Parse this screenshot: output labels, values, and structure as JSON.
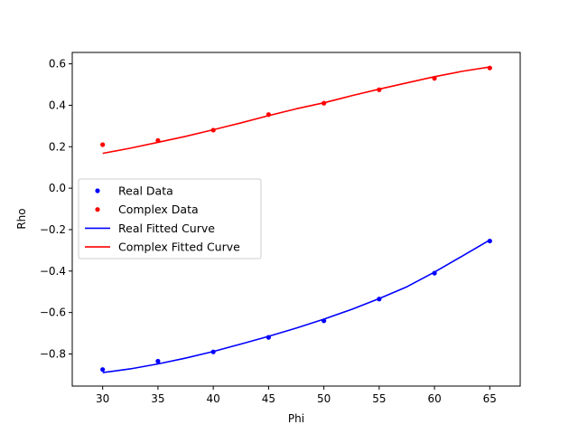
{
  "chart_data": {
    "type": "line",
    "title": "",
    "xlabel": "Phi",
    "ylabel": "Rho",
    "xlim": [
      27.25,
      67.75
    ],
    "ylim": [
      -0.955,
      0.655
    ],
    "xticks": [
      30,
      35,
      40,
      45,
      50,
      55,
      60,
      65
    ],
    "yticks": [
      -0.8,
      -0.6,
      -0.4,
      -0.2,
      0.0,
      0.2,
      0.4,
      0.6
    ],
    "xtick_labels": [
      "30",
      "35",
      "40",
      "45",
      "50",
      "55",
      "60",
      "65"
    ],
    "ytick_labels": [
      "−0.8",
      "−0.6",
      "−0.4",
      "−0.2",
      "0.0",
      "0.2",
      "0.4",
      "0.6"
    ],
    "grid": false,
    "legend_position": "center-left",
    "series": [
      {
        "name": "Real Data",
        "kind": "scatter",
        "color": "#0000ff",
        "x": [
          30,
          35,
          40,
          45,
          50,
          55,
          60,
          65
        ],
        "y": [
          -0.875,
          -0.835,
          -0.79,
          -0.72,
          -0.64,
          -0.535,
          -0.41,
          -0.255
        ]
      },
      {
        "name": "Complex Data",
        "kind": "scatter",
        "color": "#ff0000",
        "x": [
          30,
          35,
          40,
          45,
          50,
          55,
          60,
          65
        ],
        "y": [
          0.21,
          0.23,
          0.28,
          0.355,
          0.41,
          0.475,
          0.53,
          0.58
        ]
      },
      {
        "name": "Real Fitted Curve",
        "kind": "line",
        "color": "#0000ff",
        "x": [
          30,
          32.5,
          35,
          37.5,
          40,
          42.5,
          45,
          47.5,
          50,
          52.5,
          55,
          57.5,
          60,
          62.5,
          65
        ],
        "y": [
          -0.89,
          -0.872,
          -0.848,
          -0.82,
          -0.788,
          -0.752,
          -0.715,
          -0.675,
          -0.632,
          -0.585,
          -0.533,
          -0.476,
          -0.405,
          -0.328,
          -0.25
        ]
      },
      {
        "name": "Complex Fitted Curve",
        "kind": "line",
        "color": "#ff0000",
        "x": [
          30,
          32.5,
          35,
          37.5,
          40,
          42.5,
          45,
          47.5,
          50,
          52.5,
          55,
          57.5,
          60,
          62.5,
          65
        ],
        "y": [
          0.168,
          0.193,
          0.221,
          0.25,
          0.282,
          0.315,
          0.35,
          0.383,
          0.412,
          0.446,
          0.478,
          0.508,
          0.538,
          0.564,
          0.585
        ]
      }
    ]
  }
}
